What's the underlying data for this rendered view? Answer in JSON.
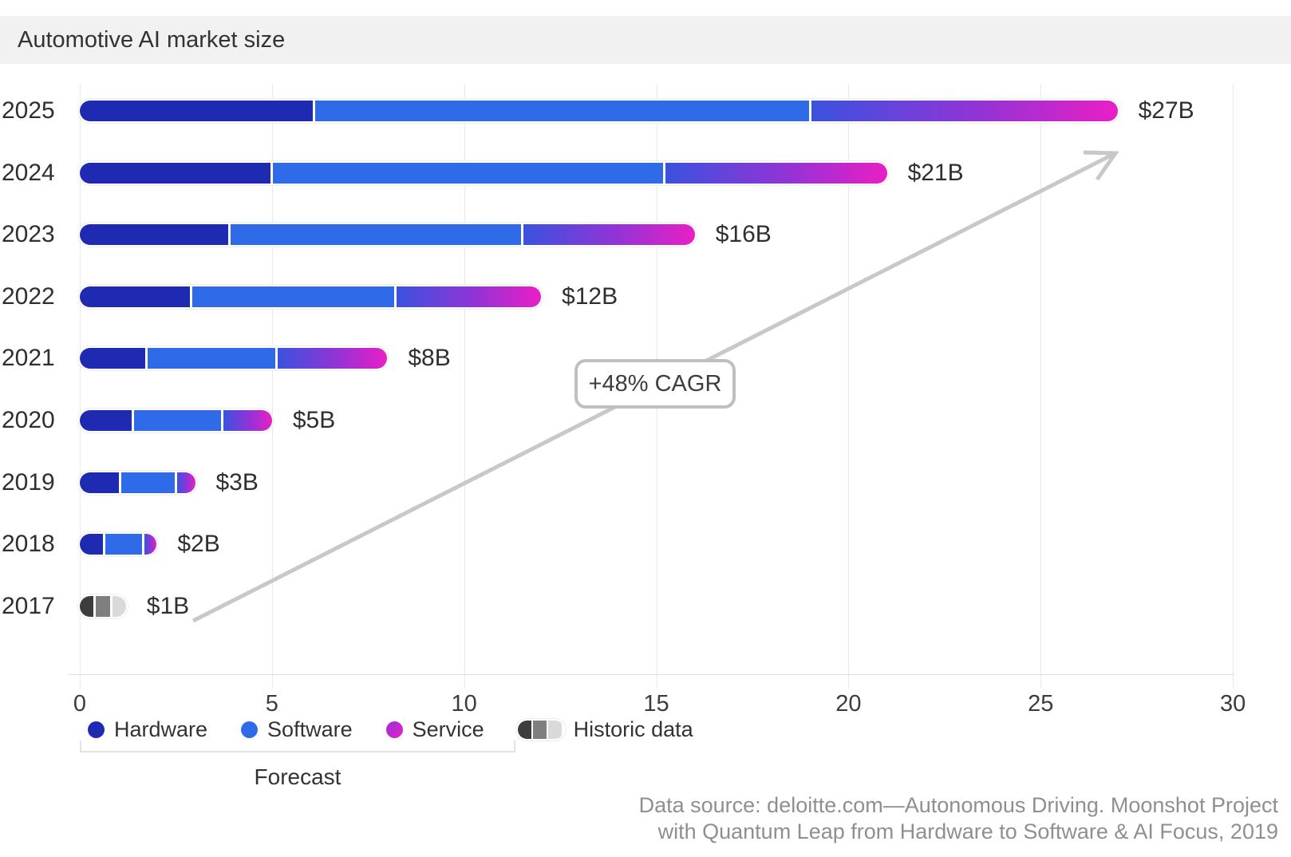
{
  "title": "Automotive AI market size",
  "chart_data": {
    "type": "bar",
    "orientation": "horizontal",
    "stacked": true,
    "title": "Automotive AI market size",
    "categories": [
      "2025",
      "2024",
      "2023",
      "2022",
      "2021",
      "2020",
      "2019",
      "2018",
      "2017"
    ],
    "series": [
      {
        "name": "Hardware",
        "values": [
          6.1,
          5.0,
          3.9,
          2.9,
          1.75,
          1.4,
          1.05,
          0.65,
          0.4
        ]
      },
      {
        "name": "Software",
        "values": [
          12.9,
          10.2,
          7.6,
          5.3,
          3.35,
          2.3,
          1.45,
          1.0,
          0.4
        ]
      },
      {
        "name": "Service",
        "values": [
          8.0,
          5.8,
          4.5,
          3.8,
          2.9,
          1.3,
          0.5,
          0.35,
          0.4
        ]
      }
    ],
    "totals_labels": [
      "$27B",
      "$21B",
      "$16B",
      "$12B",
      "$8B",
      "$5B",
      "$3B",
      "$2B",
      "$1B"
    ],
    "historic_categories": [
      "2017"
    ],
    "x_ticks": [
      0,
      5,
      10,
      15,
      20,
      25,
      30
    ],
    "xlim": [
      0,
      30
    ],
    "grid": "vertical",
    "legend_position": "bottom"
  },
  "annotation": {
    "label": "+48% CAGR"
  },
  "legend": {
    "items": [
      {
        "label": "Hardware",
        "swatch": "hardware"
      },
      {
        "label": "Software",
        "swatch": "software"
      },
      {
        "label": "Service",
        "swatch": "service"
      },
      {
        "label": "Historic data",
        "swatch": "historic"
      }
    ],
    "forecast_label": "Forecast"
  },
  "footer": {
    "line1": "Data source: deloitte.com—Autonomous Driving. Moonshot Project",
    "line2": "with Quantum Leap from Hardware to Software & AI Focus, 2019"
  },
  "colors": {
    "hardware": "#1e2ab2",
    "software": "#2f6ae8",
    "service_gradient": [
      "#3b52de",
      "#9333d6",
      "#e91fc5"
    ],
    "historic": [
      "#3d3d3d",
      "#7f7f7f",
      "#d9d9d9"
    ],
    "arrow": "#c8c8c8",
    "title_band": "#f1f1f2"
  }
}
